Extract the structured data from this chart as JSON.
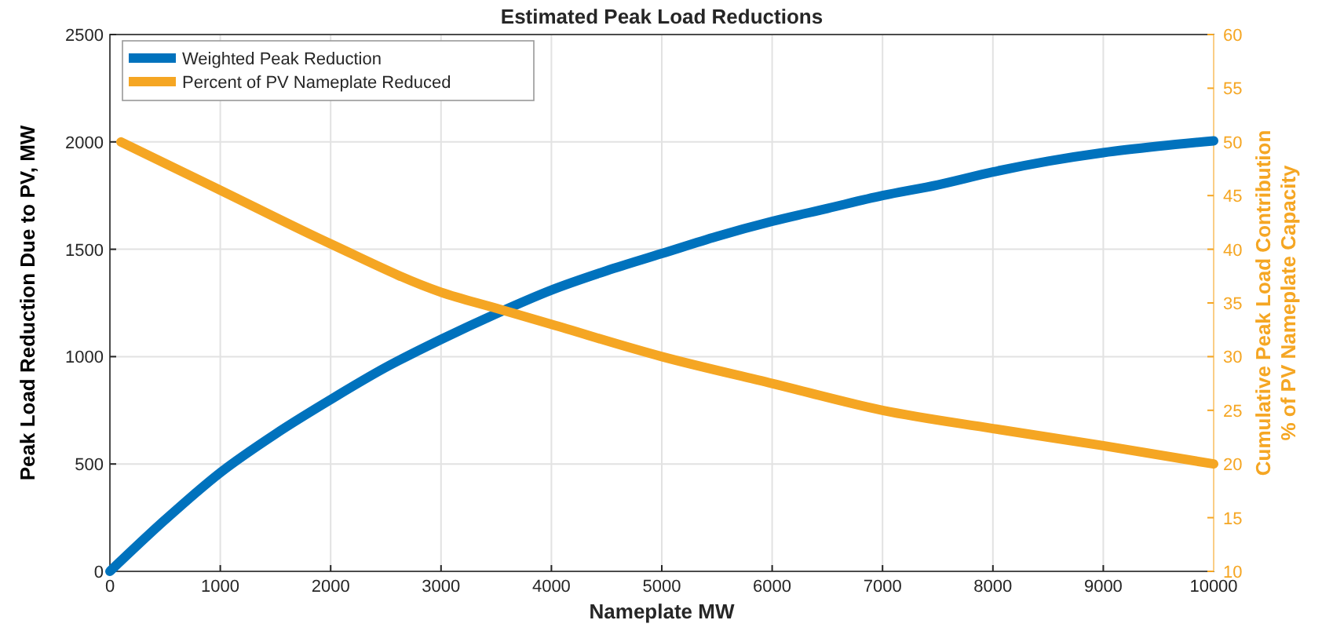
{
  "chart_data": {
    "type": "line",
    "title": "Estimated Peak Load Reductions",
    "xlabel": "Nameplate MW",
    "ylabel": "Peak Load Reduction Due to PV, MW",
    "y2label": "Cumulative Peak Load Contribution\n% of PV Nameplate Capacity",
    "xlim": [
      0,
      10000
    ],
    "xticks": [
      0,
      1000,
      2000,
      3000,
      4000,
      5000,
      6000,
      7000,
      8000,
      9000,
      10000
    ],
    "ylim": [
      0,
      2500
    ],
    "yticks": [
      0,
      500,
      1000,
      1500,
      2000,
      2500
    ],
    "y2lim": [
      10,
      60
    ],
    "y2ticks": [
      10,
      15,
      20,
      25,
      30,
      35,
      40,
      45,
      50,
      55,
      60
    ],
    "grid": true,
    "legend": "top left",
    "line_style": "solid",
    "marker": "none",
    "series": [
      {
        "name": "Weighted Peak Reduction",
        "color": "#0072bd",
        "x": [
          0,
          500,
          1000,
          1500,
          2000,
          2500,
          3000,
          3500,
          4000,
          4500,
          5000,
          5500,
          6000,
          6500,
          7000,
          7500,
          8000,
          8500,
          9000,
          9500,
          10000
        ],
        "values": [
          0,
          240,
          460,
          640,
          800,
          950,
          1080,
          1200,
          1310,
          1400,
          1480,
          1560,
          1630,
          1690,
          1750,
          1800,
          1860,
          1910,
          1950,
          1980,
          2005
        ]
      },
      {
        "name": "Percent of PV Nameplate Reduced",
        "color": "#f5a623",
        "axis": "y2",
        "x": [
          100,
          1000,
          2000,
          3000,
          3500,
          4000,
          5000,
          6000,
          7000,
          8000,
          9000,
          10000
        ],
        "values": [
          50,
          45.5,
          40.5,
          36,
          34.5,
          33,
          30,
          27.5,
          25,
          23.3,
          21.7,
          20
        ]
      }
    ]
  }
}
